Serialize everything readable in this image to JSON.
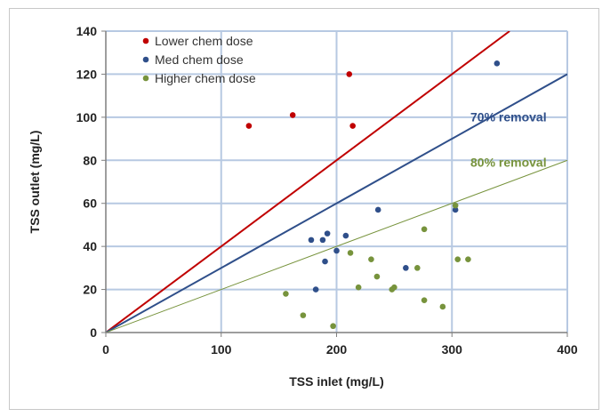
{
  "chart_data": {
    "type": "scatter",
    "xlabel": "TSS inlet (mg/L)",
    "ylabel": "TSS outlet (mg/L)",
    "xlim": [
      0,
      400
    ],
    "ylim": [
      0,
      140
    ],
    "xticks": [
      0,
      100,
      200,
      300,
      400
    ],
    "yticks": [
      0,
      20,
      40,
      60,
      80,
      100,
      120,
      140
    ],
    "grid": true,
    "legend_position": "top-left",
    "series": [
      {
        "name": "Lower chem dose",
        "color": "#c00000",
        "points": [
          {
            "x": 124,
            "y": 96
          },
          {
            "x": 162,
            "y": 101
          },
          {
            "x": 211,
            "y": 120
          },
          {
            "x": 214,
            "y": 96
          }
        ]
      },
      {
        "name": "Med chem dose",
        "color": "#2f4f8a",
        "points": [
          {
            "x": 178,
            "y": 43
          },
          {
            "x": 182,
            "y": 20
          },
          {
            "x": 188,
            "y": 43
          },
          {
            "x": 190,
            "y": 33
          },
          {
            "x": 192,
            "y": 46
          },
          {
            "x": 200,
            "y": 38
          },
          {
            "x": 208,
            "y": 45
          },
          {
            "x": 236,
            "y": 57
          },
          {
            "x": 260,
            "y": 30
          },
          {
            "x": 303,
            "y": 57
          },
          {
            "x": 339,
            "y": 125
          }
        ]
      },
      {
        "name": "Higher chem dose",
        "color": "#77933c",
        "points": [
          {
            "x": 156,
            "y": 18
          },
          {
            "x": 171,
            "y": 8
          },
          {
            "x": 197,
            "y": 3
          },
          {
            "x": 212,
            "y": 37
          },
          {
            "x": 219,
            "y": 21
          },
          {
            "x": 230,
            "y": 34
          },
          {
            "x": 235,
            "y": 26
          },
          {
            "x": 248,
            "y": 20
          },
          {
            "x": 250,
            "y": 21
          },
          {
            "x": 270,
            "y": 30
          },
          {
            "x": 276,
            "y": 15
          },
          {
            "x": 276,
            "y": 48
          },
          {
            "x": 292,
            "y": 12
          },
          {
            "x": 303,
            "y": 59
          },
          {
            "x": 305,
            "y": 34
          },
          {
            "x": 314,
            "y": 34
          }
        ]
      }
    ],
    "reference_lines": [
      {
        "label": "",
        "color": "#c00000",
        "from": [
          0,
          0
        ],
        "to": [
          350,
          140
        ]
      },
      {
        "label": "70% removal",
        "color": "#2f4f8a",
        "from": [
          0,
          0
        ],
        "to": [
          400,
          120
        ]
      },
      {
        "label": "80% removal",
        "color": "#77933c",
        "from": [
          0,
          0
        ],
        "to": [
          400,
          80
        ]
      }
    ]
  }
}
